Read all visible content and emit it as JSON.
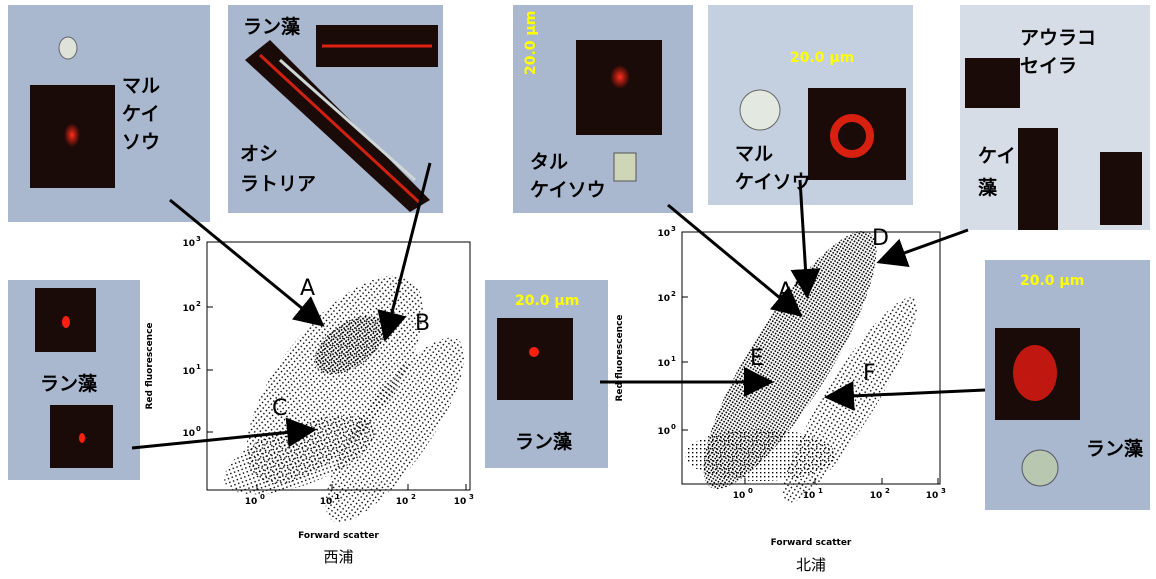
{
  "plots": [
    {
      "caption": "西浦",
      "x_label": "Forward scatter",
      "y_label": "Red fluorescence",
      "xticks": [
        {
          "base": "10",
          "exp": "0"
        },
        {
          "base": "10",
          "exp": "1"
        },
        {
          "base": "10",
          "exp": "2"
        },
        {
          "base": "10",
          "exp": "3"
        }
      ],
      "yticks": [
        {
          "base": "10",
          "exp": "0"
        },
        {
          "base": "10",
          "exp": "1"
        },
        {
          "base": "10",
          "exp": "2"
        },
        {
          "base": "10",
          "exp": "3"
        }
      ],
      "points": [
        "A",
        "B",
        "C"
      ]
    },
    {
      "caption": "北浦",
      "x_label": "Forward scatter",
      "y_label": "Red fluorescence",
      "xticks": [
        {
          "base": "10",
          "exp": "0"
        },
        {
          "base": "10",
          "exp": "1"
        },
        {
          "base": "10",
          "exp": "2"
        },
        {
          "base": "10",
          "exp": "3"
        }
      ],
      "yticks": [
        {
          "base": "10",
          "exp": "0"
        },
        {
          "base": "10",
          "exp": "1"
        },
        {
          "base": "10",
          "exp": "2"
        },
        {
          "base": "10",
          "exp": "3"
        }
      ],
      "points": [
        "A’",
        "D",
        "E",
        "F"
      ]
    }
  ],
  "panels": [
    {
      "label": [
        "マル",
        "ケイ",
        "ソウ"
      ]
    },
    {
      "label": [
        "ラン藻",
        "オシ",
        "ラトリア"
      ]
    },
    {
      "label": [
        "ラン藻"
      ]
    },
    {
      "label": [
        "ラン藻"
      ],
      "scale": "20.0 μm"
    },
    {
      "label": [
        "タル",
        "ケイソウ"
      ],
      "scale": "20.0 μm"
    },
    {
      "label": [
        "マル",
        "ケイソウ"
      ],
      "scale": "20.0 μm"
    },
    {
      "label": [
        "アウラコ",
        "セイラ",
        "ケイ",
        "藻"
      ]
    },
    {
      "label": [
        "ラン藻"
      ],
      "scale": "20.0 μm"
    }
  ]
}
